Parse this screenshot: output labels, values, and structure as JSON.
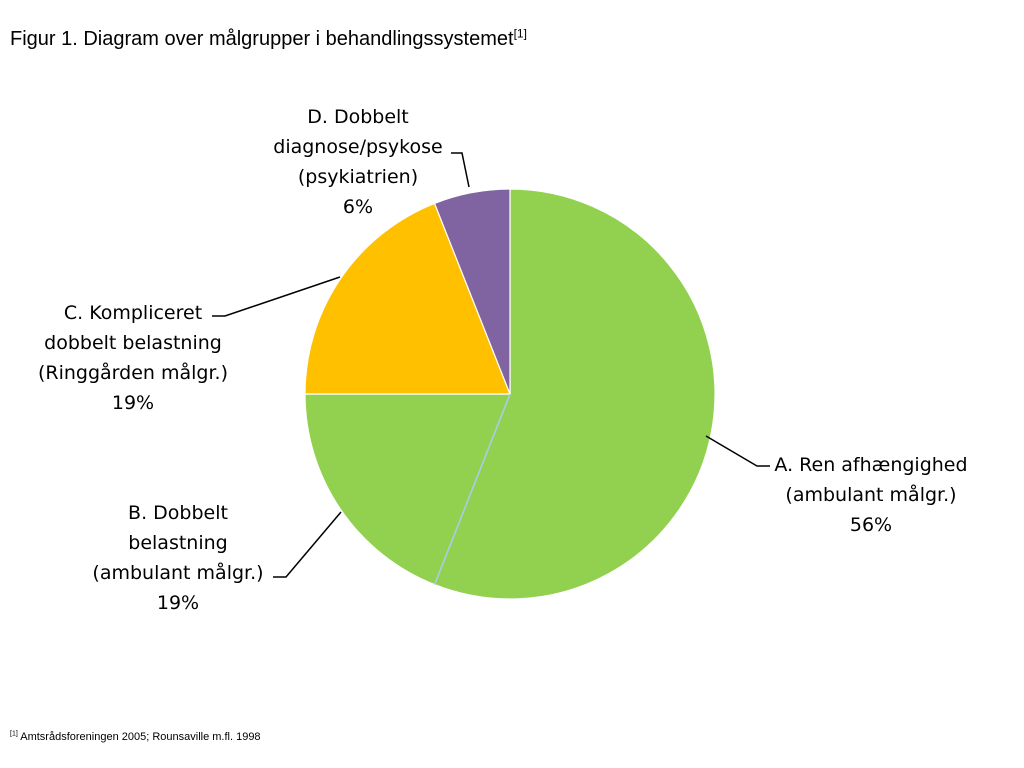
{
  "page": {
    "title": "Figur 1. Diagram over målgrupper i behandlingssystemet",
    "title_ref": "[1]",
    "footnote_ref": "[1]",
    "footnote": "Amtsrådsforeningen 2005; Rounsaville m.fl. 1998"
  },
  "chart_data": {
    "type": "pie",
    "title": "Figur 1. Diagram over målgrupper i behandlingssystemet",
    "start": "12 o'clock",
    "direction": "clockwise",
    "legend": "none",
    "slices": [
      {
        "name": "A. Ren afhængighed (ambulant målgr.)",
        "label_lines": [
          "A. Ren afhængighed",
          "(ambulant målgr.)"
        ],
        "value": 56,
        "value_label": "56%",
        "color": "#92d050"
      },
      {
        "name": "B. Dobbelt belastning (ambulant målgr.)",
        "label_lines": [
          "B. Dobbelt",
          "belastning",
          "(ambulant målgr.)"
        ],
        "value": 19,
        "value_label": "19%",
        "color": "#92d050"
      },
      {
        "name": "C. Kompliceret dobbelt belastning (Ringgården målgr.)",
        "label_lines": [
          "C. Kompliceret",
          "dobbelt belastning",
          "(Ringgården målgr.)"
        ],
        "value": 19,
        "value_label": "19%",
        "color": "#ffc000"
      },
      {
        "name": "D. Dobbelt diagnose/psykose (psykiatrien)",
        "label_lines": [
          "D. Dobbelt",
          "diagnose/psykose",
          "(psykiatrien)"
        ],
        "value": 6,
        "value_label": "6%",
        "color": "#8064a2"
      }
    ]
  }
}
